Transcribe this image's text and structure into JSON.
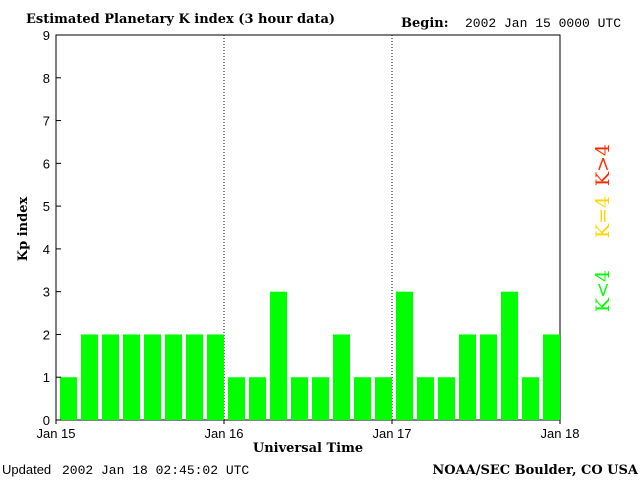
{
  "chart_data": {
    "type": "bar",
    "title": "Estimated Planetary K index (3 hour data)",
    "begin_label": "Begin:",
    "begin_value": "2002 Jan 15 0000 UTC",
    "ylabel": "Kp index",
    "xlabel": "Universal Time",
    "ylim": [
      0,
      9
    ],
    "y_ticks": [
      "0",
      "1",
      "2",
      "3",
      "4",
      "5",
      "6",
      "7",
      "8",
      "9"
    ],
    "x_tick_labels": [
      "Jan 15",
      "Jan 16",
      "Jan 17",
      "Jan 18"
    ],
    "values": [
      1,
      2,
      2,
      2,
      2,
      2,
      2,
      2,
      1,
      1,
      3,
      1,
      1,
      2,
      1,
      1,
      3,
      1,
      1,
      2,
      2,
      3,
      1,
      2
    ],
    "interval_hours": 3,
    "day_separators": "dotted",
    "colors": {
      "low": "#00ff00",
      "equal": "#ffd700",
      "high": "#ff2a00"
    },
    "legend": [
      {
        "label": "K<4",
        "color": "#00ff00"
      },
      {
        "label": "K=4",
        "color": "#ffd700"
      },
      {
        "label": "K>4",
        "color": "#ff2a00"
      }
    ]
  },
  "footer": {
    "updated_label": "Updated",
    "updated_value": "2002 Jan 18 02:45:02 UTC",
    "source": "NOAA/SEC Boulder, CO USA"
  }
}
